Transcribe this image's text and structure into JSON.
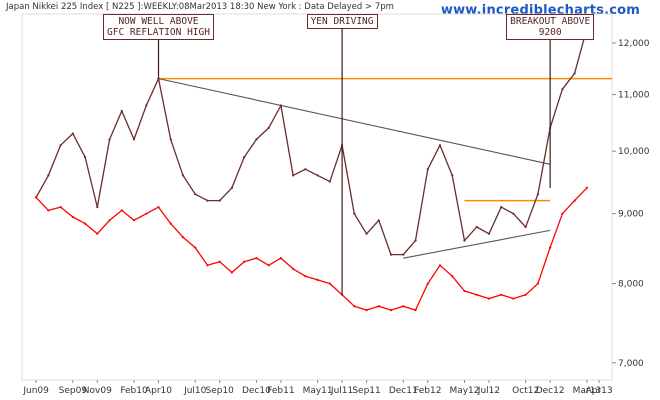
{
  "header": {
    "title": "Japan Nikkei 225 Index [ N225 ]:WEEKLY:08Mar2013 18:30 New York : Data Delayed > 7pm",
    "brand": "www.incrediblecharts.com"
  },
  "annotations": [
    {
      "lines": [
        "NOW WELL ABOVE",
        "GFC REFLATION HIGH"
      ]
    },
    {
      "lines": [
        "YEN DRIVING"
      ]
    },
    {
      "lines": [
        "BREAKOUT ABOVE",
        "9200"
      ]
    }
  ],
  "colors": {
    "index_line": "#6b2c2c",
    "yen_line": "#ff0000",
    "trendline": "#555555",
    "resistance": "#ff8c00",
    "annotation_text": "#5a2323",
    "brand": "#1f57c4"
  },
  "chart_data": {
    "type": "line",
    "title": "Japan Nikkei 225 Index [ N225 ]",
    "xlabel": "",
    "ylabel": "",
    "y_scale": "log",
    "ylim": [
      6800,
      12600
    ],
    "y_ticks": [
      "7,000",
      "8,000",
      "9,000",
      "10,000",
      "11,000",
      "12,000"
    ],
    "y_tick_values": [
      7000,
      8000,
      9000,
      10000,
      11000,
      12000
    ],
    "x_ticks": [
      "Jun09",
      "Sep09",
      "Nov09",
      "Feb10",
      "Apr10",
      "Jul10",
      "Sep10",
      "Dec10",
      "Feb11",
      "May11",
      "Jul11",
      "Sep11",
      "Dec11",
      "Feb12",
      "May12",
      "Jul12",
      "Oct12",
      "Dec12",
      "Mar13",
      "Apr13"
    ],
    "grid": false,
    "legend": "none",
    "series": [
      {
        "values": [
          [
            "Jun09",
            9250
          ],
          [
            "Jul09",
            9600
          ],
          [
            "Aug09",
            10100
          ],
          [
            "Sep09",
            10300
          ],
          [
            "Oct09",
            9900
          ],
          [
            "Nov09",
            9100
          ],
          [
            "Dec09",
            10200
          ],
          [
            "Jan10",
            10700
          ],
          [
            "Feb10",
            10200
          ],
          [
            "Mar10",
            10800
          ],
          [
            "Apr10",
            11300
          ],
          [
            "May10",
            10200
          ],
          [
            "Jun10",
            9600
          ],
          [
            "Jul10",
            9300
          ],
          [
            "Aug10",
            9200
          ],
          [
            "Sep10",
            9200
          ],
          [
            "Oct10",
            9400
          ],
          [
            "Nov10",
            9900
          ],
          [
            "Dec10",
            10200
          ],
          [
            "Jan11",
            10400
          ],
          [
            "Feb11",
            10800
          ],
          [
            "Mar11",
            9600
          ],
          [
            "Apr11",
            9700
          ],
          [
            "May11",
            9600
          ],
          [
            "Jun11",
            9500
          ],
          [
            "Jul11",
            10100
          ],
          [
            "Aug11",
            9000
          ],
          [
            "Sep11",
            8700
          ],
          [
            "Oct11",
            8900
          ],
          [
            "Nov11",
            8400
          ],
          [
            "Dec11",
            8400
          ],
          [
            "Jan12",
            8600
          ],
          [
            "Feb12",
            9700
          ],
          [
            "Mar12",
            10100
          ],
          [
            "Apr12",
            9600
          ],
          [
            "May12",
            8600
          ],
          [
            "Jun12",
            8800
          ],
          [
            "Jul12",
            8700
          ],
          [
            "Aug12",
            9100
          ],
          [
            "Sep12",
            9000
          ],
          [
            "Oct12",
            8800
          ],
          [
            "Nov12",
            9300
          ],
          [
            "Dec12",
            10400
          ],
          [
            "Jan13",
            11100
          ],
          [
            "Feb13",
            11400
          ],
          [
            "Mar13",
            12300
          ]
        ]
      },
      {
        "values": [
          [
            "Jun09",
            9250
          ],
          [
            "Jul09",
            9050
          ],
          [
            "Aug09",
            9100
          ],
          [
            "Sep09",
            8950
          ],
          [
            "Oct09",
            8850
          ],
          [
            "Nov09",
            8700
          ],
          [
            "Dec09",
            8900
          ],
          [
            "Jan10",
            9050
          ],
          [
            "Feb10",
            8900
          ],
          [
            "Mar10",
            9000
          ],
          [
            "Apr10",
            9100
          ],
          [
            "May10",
            8850
          ],
          [
            "Jun10",
            8650
          ],
          [
            "Jul10",
            8500
          ],
          [
            "Aug10",
            8250
          ],
          [
            "Sep10",
            8300
          ],
          [
            "Oct10",
            8150
          ],
          [
            "Nov10",
            8300
          ],
          [
            "Dec10",
            8350
          ],
          [
            "Jan11",
            8250
          ],
          [
            "Feb11",
            8350
          ],
          [
            "Mar11",
            8200
          ],
          [
            "Apr11",
            8100
          ],
          [
            "May11",
            8050
          ],
          [
            "Jun11",
            8000
          ],
          [
            "Jul11",
            7850
          ],
          [
            "Aug11",
            7700
          ],
          [
            "Sep11",
            7650
          ],
          [
            "Oct11",
            7700
          ],
          [
            "Nov11",
            7650
          ],
          [
            "Dec11",
            7700
          ],
          [
            "Jan12",
            7650
          ],
          [
            "Feb12",
            8000
          ],
          [
            "Mar12",
            8250
          ],
          [
            "Apr12",
            8100
          ],
          [
            "May12",
            7900
          ],
          [
            "Jun12",
            7850
          ],
          [
            "Jul12",
            7800
          ],
          [
            "Aug12",
            7850
          ],
          [
            "Sep12",
            7800
          ],
          [
            "Oct12",
            7850
          ],
          [
            "Nov12",
            8000
          ],
          [
            "Dec12",
            8500
          ],
          [
            "Jan13",
            9000
          ],
          [
            "Feb13",
            9200
          ],
          [
            "Mar13",
            9400
          ]
        ]
      }
    ],
    "reference_lines": [
      {
        "kind": "horizontal",
        "value": 11300,
        "from": "Apr10",
        "to": "Apr13",
        "color": "#ff8c00"
      },
      {
        "kind": "horizontal",
        "value": 9200,
        "from": "May12",
        "to": "Dec12",
        "color": "#ff8c00"
      },
      {
        "kind": "trend",
        "from": [
          "Apr10",
          11300
        ],
        "to": [
          "Dec12",
          9780
        ],
        "color": "#555555"
      },
      {
        "kind": "trend",
        "from": [
          "Dec11",
          8350
        ],
        "to": [
          "Dec12",
          8750
        ],
        "color": "#555555"
      }
    ]
  }
}
